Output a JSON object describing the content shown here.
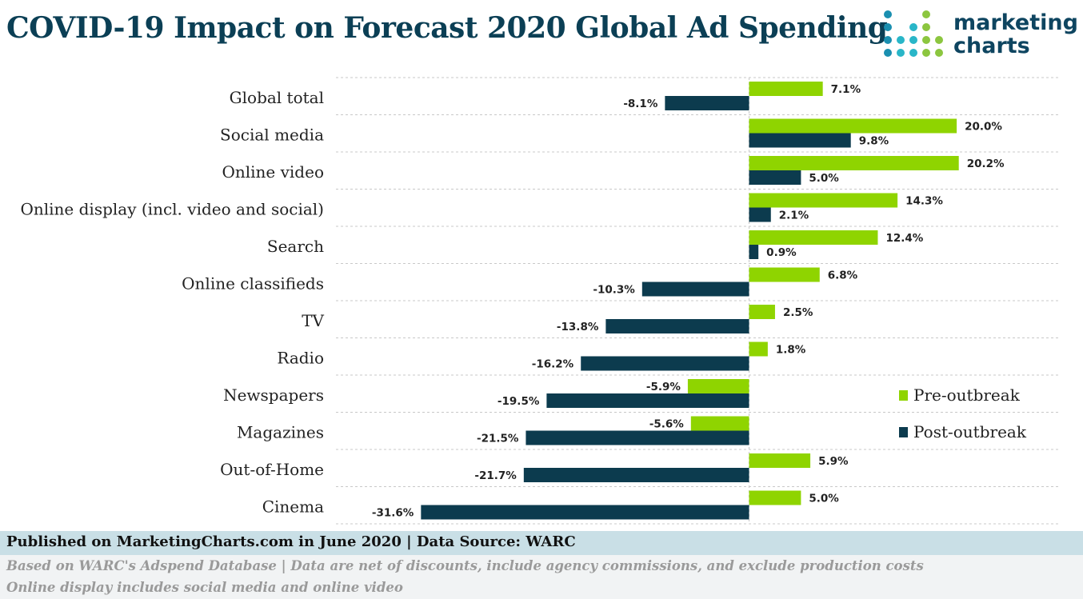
{
  "header": {
    "title": "COVID-19 Impact on Forecast 2020 Global Ad Spending",
    "logo": {
      "line1": "marketing",
      "line2": "charts",
      "icon": "dot-grid-logo-icon"
    }
  },
  "chart_data": {
    "type": "bar",
    "orientation": "horizontal",
    "title": "COVID-19 Impact on Forecast 2020 Global Ad Spending",
    "xlabel": "",
    "ylabel": "",
    "grid": true,
    "legend": "right",
    "categories": [
      "Global total",
      "Social media",
      "Online video",
      "Online display (incl. video and social)",
      "Search",
      "Online classifieds",
      "TV",
      "Radio",
      "Newspapers",
      "Magazines",
      "Out-of-Home",
      "Cinema"
    ],
    "series": [
      {
        "name": "Pre-outbreak",
        "color": "#8fd400",
        "values": [
          7.1,
          20.0,
          20.2,
          14.3,
          12.4,
          6.8,
          2.5,
          1.8,
          -5.9,
          -5.6,
          5.9,
          5.0
        ],
        "labels": [
          "7.1%",
          "20.0%",
          "20.2%",
          "14.3%",
          "12.4%",
          "6.8%",
          "2.5%",
          "1.8%",
          "-5.9%",
          "-5.6%",
          "5.9%",
          "5.0%"
        ]
      },
      {
        "name": "Post-outbreak",
        "color": "#0c3b4e",
        "values": [
          -8.1,
          9.8,
          5.0,
          2.1,
          0.9,
          -10.3,
          -13.8,
          -16.2,
          -19.5,
          -21.5,
          -21.7,
          -31.6
        ],
        "labels": [
          "-8.1%",
          "9.8%",
          "5.0%",
          "2.1%",
          "0.9%",
          "-10.3%",
          "-13.8%",
          "-16.2%",
          "-19.5%",
          "-21.5%",
          "-21.7%",
          "-31.6%"
        ]
      }
    ]
  },
  "footer": {
    "published": "Published on MarketingCharts.com in June 2020 | Data Source: WARC",
    "note1": "Based on WARC's Adspend Database | Data are net of discounts, include agency commissions, and exclude production costs",
    "note2": "Online display includes social media and online video"
  }
}
